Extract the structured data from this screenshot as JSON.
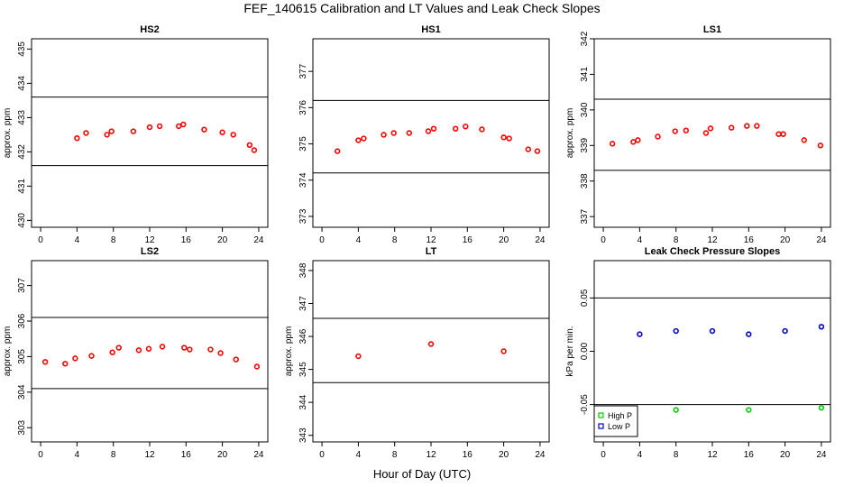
{
  "page": {
    "title": "FEF_140615  Calibration and LT Values and Leak Check Slopes",
    "xlabel": "Hour of Day (UTC)"
  },
  "colors": {
    "calib": "#ff0000",
    "high_p": "#00cc00",
    "low_p": "#0000cc",
    "frame": "#000000"
  },
  "chart_data": [
    {
      "id": "hs2",
      "type": "scatter",
      "title": "HS2",
      "ylabel": "approx. ppm",
      "xlim": [
        -1,
        25
      ],
      "ylim": [
        429.8,
        435.3
      ],
      "xticks": [
        0,
        4,
        8,
        12,
        16,
        20,
        24
      ],
      "yticks": [
        430,
        431,
        432,
        433,
        434,
        435
      ],
      "hlines": [
        431.6,
        433.6
      ],
      "series": [
        {
          "color": "calib",
          "marker": "circle",
          "x": [
            4,
            5,
            7.3,
            7.8,
            10.2,
            12,
            13.1,
            15.2,
            15.7,
            18,
            20,
            21.2,
            23,
            23.5
          ],
          "y": [
            432.4,
            432.55,
            432.5,
            432.6,
            432.6,
            432.72,
            432.75,
            432.75,
            432.8,
            432.65,
            432.57,
            432.5,
            432.2,
            432.05
          ]
        }
      ]
    },
    {
      "id": "hs1",
      "type": "scatter",
      "title": "HS1",
      "ylabel": "",
      "xlim": [
        -1,
        25
      ],
      "ylim": [
        372.7,
        377.9
      ],
      "xticks": [
        0,
        4,
        8,
        12,
        16,
        20,
        24
      ],
      "yticks": [
        373,
        374,
        375,
        376,
        377
      ],
      "hlines": [
        374.2,
        376.2
      ],
      "series": [
        {
          "color": "calib",
          "marker": "circle",
          "x": [
            1.7,
            4,
            4.6,
            6.8,
            7.9,
            9.6,
            11.7,
            12.3,
            14.7,
            15.8,
            17.6,
            20,
            20.6,
            22.7,
            23.7
          ],
          "y": [
            374.8,
            375.1,
            375.15,
            375.25,
            375.3,
            375.3,
            375.35,
            375.42,
            375.42,
            375.48,
            375.4,
            375.18,
            375.15,
            374.85,
            374.8
          ]
        }
      ]
    },
    {
      "id": "ls1",
      "type": "scatter",
      "title": "LS1",
      "ylabel": "approx. ppm",
      "xlim": [
        -1,
        25
      ],
      "ylim": [
        336.7,
        342.0
      ],
      "xticks": [
        0,
        4,
        8,
        12,
        16,
        20,
        24
      ],
      "yticks": [
        337,
        338,
        339,
        340,
        341,
        342
      ],
      "hlines": [
        338.3,
        340.3
      ],
      "series": [
        {
          "color": "calib",
          "marker": "circle",
          "x": [
            1,
            3.3,
            3.8,
            6,
            7.9,
            9.1,
            11.3,
            11.8,
            14.1,
            15.8,
            16.9,
            19.3,
            19.8,
            22.1,
            23.9
          ],
          "y": [
            339.05,
            339.1,
            339.15,
            339.25,
            339.4,
            339.42,
            339.35,
            339.48,
            339.5,
            339.55,
            339.55,
            339.32,
            339.32,
            339.15,
            339.0
          ]
        }
      ]
    },
    {
      "id": "ls2",
      "type": "scatter",
      "title": "LS2",
      "ylabel": "approx. ppm",
      "xlim": [
        -1,
        25
      ],
      "ylim": [
        302.6,
        307.7
      ],
      "xticks": [
        0,
        4,
        8,
        12,
        16,
        20,
        24
      ],
      "yticks": [
        303,
        304,
        305,
        306,
        307
      ],
      "hlines": [
        304.1,
        306.1
      ],
      "series": [
        {
          "color": "calib",
          "marker": "circle",
          "x": [
            0.5,
            2.7,
            3.8,
            5.6,
            7.9,
            8.6,
            10.8,
            11.9,
            13.4,
            15.8,
            16.4,
            18.7,
            19.8,
            21.5,
            23.8
          ],
          "y": [
            304.85,
            304.8,
            304.95,
            305.02,
            305.12,
            305.25,
            305.18,
            305.22,
            305.28,
            305.25,
            305.2,
            305.2,
            305.1,
            304.92,
            304.72
          ]
        }
      ]
    },
    {
      "id": "lt",
      "type": "scatter",
      "title": "LT",
      "ylabel": "approx. ppm",
      "xlim": [
        -1,
        25
      ],
      "ylim": [
        342.8,
        348.3
      ],
      "xticks": [
        0,
        4,
        8,
        12,
        16,
        20,
        24
      ],
      "yticks": [
        343,
        344,
        345,
        346,
        347,
        348
      ],
      "hlines": [
        344.6,
        346.55
      ],
      "series": [
        {
          "color": "calib",
          "marker": "circle",
          "x": [
            4,
            12,
            20
          ],
          "y": [
            345.4,
            345.77,
            345.55
          ]
        }
      ]
    },
    {
      "id": "leak",
      "type": "scatter",
      "title": "Leak Check Pressure Slopes",
      "ylabel": "kPa per min.",
      "xlim": [
        -1,
        25
      ],
      "ylim": [
        -0.085,
        0.085
      ],
      "xticks": [
        0,
        4,
        8,
        12,
        16,
        20,
        24
      ],
      "yticks": [
        -0.05,
        0.0,
        0.05
      ],
      "ytick_labels": [
        "-0.05",
        "0.00",
        "0.05"
      ],
      "hlines": [
        -0.05,
        0.05
      ],
      "legend": {
        "position": "bottom-left",
        "entries": [
          "High P",
          "Low P"
        ]
      },
      "series": [
        {
          "name": "High P",
          "color": "high_p",
          "marker": "circle",
          "x": [
            8,
            16,
            24
          ],
          "y": [
            -0.055,
            -0.055,
            -0.053
          ]
        },
        {
          "name": "Low P",
          "color": "low_p",
          "marker": "circle",
          "x": [
            4,
            8,
            12,
            16,
            20,
            24
          ],
          "y": [
            0.016,
            0.019,
            0.019,
            0.016,
            0.019,
            0.023
          ]
        }
      ]
    }
  ]
}
